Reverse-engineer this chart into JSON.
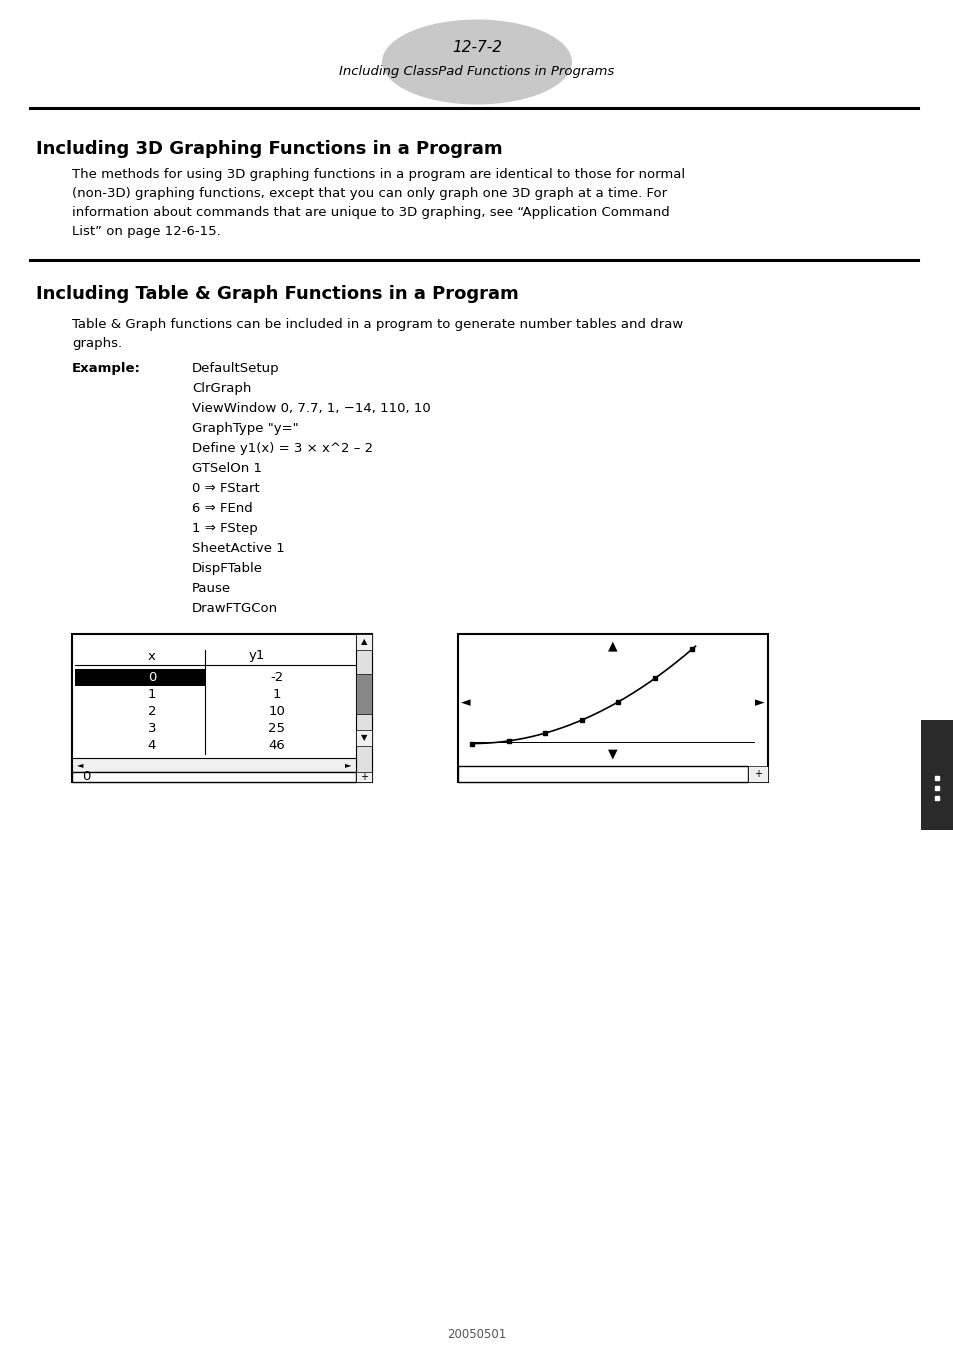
{
  "page_number": "12-7-2",
  "page_subtitle": "Including ClassPad Functions in Programs",
  "section1_title": "Including 3D Graphing Functions in a Program",
  "section1_body_lines": [
    "The methods for using 3D graphing functions in a program are identical to those for normal",
    "(non-3D) graphing functions, except that you can only graph one 3D graph at a time. For",
    "information about commands that are unique to 3D graphing, see “Application Command",
    "List” on page 12-6-15."
  ],
  "section2_title": "Including Table & Graph Functions in a Program",
  "section2_body_lines": [
    "Table & Graph functions can be included in a program to generate number tables and draw",
    "graphs."
  ],
  "example_label": "Example:",
  "example_lines": [
    "DefaultSetup",
    "ClrGraph",
    "ViewWindow 0, 7.7, 1, −14, 110, 10",
    "GraphType \"y=\"",
    "Define y1(x) = 3 × x^2 – 2",
    "GTSelOn 1",
    "0 ⇒ FStart",
    "6 ⇒ FEnd",
    "1 ⇒ FStep",
    "SheetActive 1",
    "DispFTable",
    "Pause",
    "DrawFTGCon"
  ],
  "table_x_values": [
    "0",
    "1",
    "2",
    "3",
    "4"
  ],
  "table_y1_values": [
    "-2",
    "1",
    "10",
    "25",
    "46"
  ],
  "footer_text": "20050501",
  "bg_color": "#ffffff",
  "text_color": "#000000",
  "header_ellipse_color": "#c8c8c8"
}
